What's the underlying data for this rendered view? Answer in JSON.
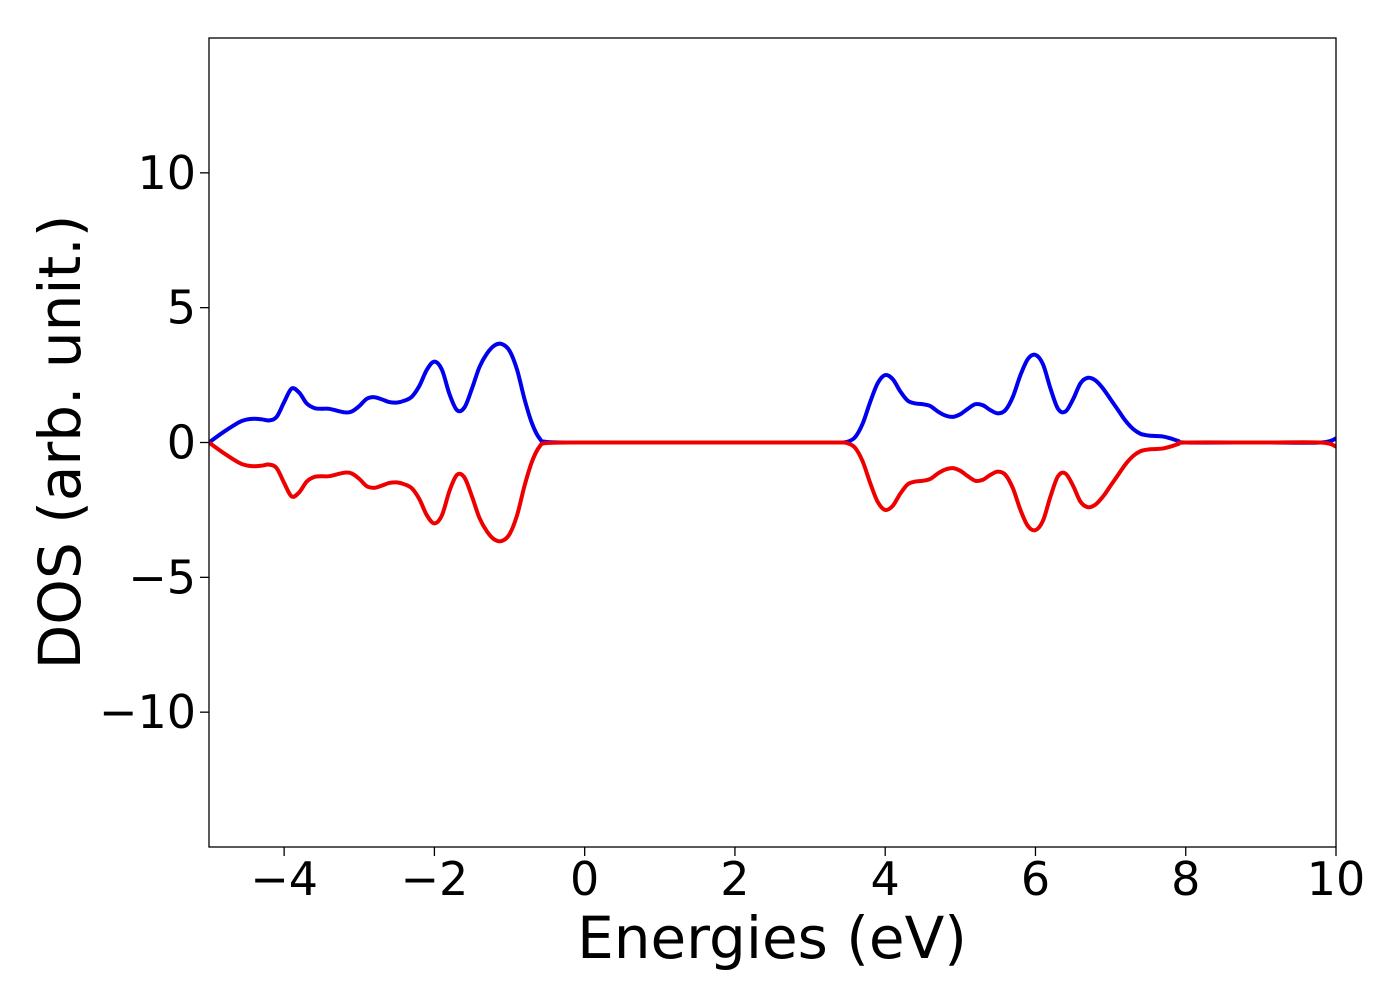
{
  "chart_data": {
    "type": "line",
    "title": "",
    "xlabel": "Energies (eV)",
    "ylabel": "DOS (arb. unit.)",
    "xlim": [
      -5,
      10
    ],
    "ylim": [
      -15,
      15
    ],
    "x_ticks": [
      -4,
      -2,
      0,
      2,
      4,
      6,
      8,
      10
    ],
    "x_tick_labels": [
      "−4",
      "−2",
      "0",
      "2",
      "4",
      "6",
      "8",
      "10"
    ],
    "y_ticks": [
      -10,
      -5,
      0,
      5,
      10
    ],
    "y_tick_labels": [
      "−10",
      "−5",
      "0",
      "5",
      "10"
    ],
    "grid": false,
    "legend": "none",
    "x": [
      -5.0,
      -4.8,
      -4.6,
      -4.5,
      -4.4,
      -4.3,
      -4.2,
      -4.1,
      -4.0,
      -3.9,
      -3.8,
      -3.7,
      -3.6,
      -3.5,
      -3.4,
      -3.2,
      -3.1,
      -3.0,
      -2.9,
      -2.8,
      -2.7,
      -2.6,
      -2.5,
      -2.4,
      -2.3,
      -2.2,
      -2.1,
      -2.0,
      -1.9,
      -1.8,
      -1.7,
      -1.6,
      -1.5,
      -1.4,
      -1.3,
      -1.2,
      -1.1,
      -1.0,
      -0.9,
      -0.8,
      -0.7,
      -0.6,
      -0.5,
      0.0,
      1.0,
      2.0,
      3.0,
      3.4,
      3.5,
      3.6,
      3.7,
      3.8,
      3.9,
      4.0,
      4.1,
      4.2,
      4.3,
      4.4,
      4.5,
      4.6,
      4.7,
      4.8,
      4.9,
      5.0,
      5.1,
      5.2,
      5.3,
      5.4,
      5.5,
      5.6,
      5.7,
      5.8,
      5.9,
      6.0,
      6.1,
      6.2,
      6.3,
      6.4,
      6.5,
      6.6,
      6.7,
      6.8,
      6.9,
      7.0,
      7.1,
      7.2,
      7.3,
      7.4,
      7.5,
      7.6,
      7.7,
      7.8,
      7.9,
      8.0,
      9.0,
      9.8,
      10.0
    ],
    "series": [
      {
        "color": "#0000ee",
        "values": [
          0.0,
          0.4,
          0.75,
          0.85,
          0.88,
          0.86,
          0.82,
          0.95,
          1.5,
          2.0,
          1.85,
          1.45,
          1.28,
          1.25,
          1.25,
          1.12,
          1.15,
          1.35,
          1.62,
          1.68,
          1.6,
          1.5,
          1.48,
          1.55,
          1.7,
          2.1,
          2.7,
          3.0,
          2.7,
          1.8,
          1.2,
          1.3,
          2.0,
          2.8,
          3.3,
          3.6,
          3.65,
          3.4,
          2.7,
          1.6,
          0.7,
          0.15,
          0.02,
          0.0,
          0.0,
          0.0,
          0.0,
          0.0,
          0.03,
          0.2,
          0.7,
          1.5,
          2.2,
          2.5,
          2.35,
          1.9,
          1.55,
          1.45,
          1.42,
          1.35,
          1.15,
          1.0,
          0.95,
          1.05,
          1.25,
          1.42,
          1.38,
          1.2,
          1.08,
          1.2,
          1.7,
          2.5,
          3.1,
          3.25,
          2.9,
          2.0,
          1.25,
          1.15,
          1.6,
          2.2,
          2.4,
          2.3,
          2.0,
          1.6,
          1.2,
          0.8,
          0.5,
          0.32,
          0.26,
          0.24,
          0.22,
          0.15,
          0.06,
          0.0,
          0.0,
          0.0,
          0.15
        ]
      },
      {
        "color": "#ee0000",
        "values": [
          0.0,
          -0.4,
          -0.75,
          -0.85,
          -0.88,
          -0.86,
          -0.82,
          -0.95,
          -1.5,
          -2.0,
          -1.85,
          -1.45,
          -1.28,
          -1.25,
          -1.25,
          -1.12,
          -1.15,
          -1.35,
          -1.62,
          -1.68,
          -1.6,
          -1.5,
          -1.48,
          -1.55,
          -1.7,
          -2.1,
          -2.7,
          -3.0,
          -2.7,
          -1.8,
          -1.2,
          -1.3,
          -2.0,
          -2.8,
          -3.3,
          -3.6,
          -3.65,
          -3.4,
          -2.7,
          -1.6,
          -0.7,
          -0.15,
          -0.02,
          0.0,
          0.0,
          0.0,
          0.0,
          0.0,
          -0.03,
          -0.2,
          -0.7,
          -1.5,
          -2.2,
          -2.5,
          -2.35,
          -1.9,
          -1.55,
          -1.45,
          -1.42,
          -1.35,
          -1.15,
          -1.0,
          -0.95,
          -1.05,
          -1.25,
          -1.42,
          -1.38,
          -1.2,
          -1.08,
          -1.2,
          -1.7,
          -2.5,
          -3.1,
          -3.25,
          -2.9,
          -2.0,
          -1.25,
          -1.15,
          -1.6,
          -2.2,
          -2.4,
          -2.3,
          -2.0,
          -1.6,
          -1.2,
          -0.8,
          -0.5,
          -0.32,
          -0.26,
          -0.24,
          -0.22,
          -0.15,
          -0.06,
          0.0,
          0.0,
          0.0,
          -0.15
        ]
      }
    ]
  }
}
